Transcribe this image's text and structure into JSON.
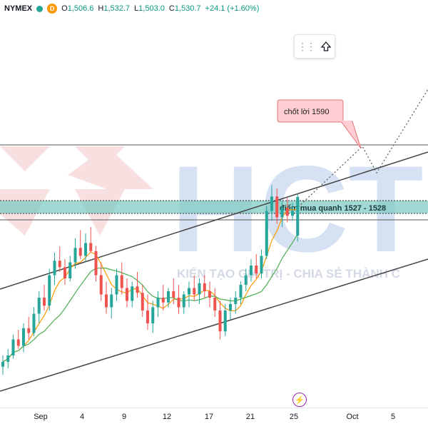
{
  "header": {
    "symbol": "NYMEX",
    "timeframe_badge": "D",
    "open_label": "O",
    "open": "1,506.6",
    "high_label": "H",
    "high": "1,532.7",
    "low_label": "L",
    "low": "1,503.0",
    "close_label": "C",
    "close": "1,530.7",
    "change": "+24.1 (+1.60%)"
  },
  "watermark": {
    "brand": "HCT",
    "slogan": "KIẾN TẠO GIÁ TRỊ - CHIA SẺ THÀNH C"
  },
  "annotations": {
    "take_profit": "chốt lời 1590",
    "buy_zone": "điểm mua quanh 1527 - 1528"
  },
  "xaxis": {
    "ticks": [
      "Sep",
      "4",
      "9",
      "12",
      "17",
      "21",
      "25",
      "Oct",
      "5"
    ]
  },
  "colors": {
    "up": "#26a69a",
    "down": "#ef5350",
    "zone": "#80cbc4",
    "callout": "#ffcdd2",
    "callout_border": "#e57373",
    "ma_fast": "#ff9800",
    "ma_slow": "#4caf50",
    "watermark_blue": "#c5d7ee",
    "watermark_red": "#f3c8c8"
  },
  "icons": {
    "toolbar_drag": "drag-handle-icon",
    "toolbar_arrow": "arrow-up-icon",
    "events": "lightning-icon"
  },
  "chart_data": {
    "type": "candlestick",
    "candles": [
      {
        "o": 1425,
        "h": 1432,
        "l": 1420,
        "c": 1428
      },
      {
        "o": 1428,
        "h": 1436,
        "l": 1424,
        "c": 1432
      },
      {
        "o": 1432,
        "h": 1445,
        "l": 1430,
        "c": 1442
      },
      {
        "o": 1442,
        "h": 1448,
        "l": 1436,
        "c": 1438
      },
      {
        "o": 1438,
        "h": 1452,
        "l": 1434,
        "c": 1449
      },
      {
        "o": 1449,
        "h": 1456,
        "l": 1442,
        "c": 1446
      },
      {
        "o": 1446,
        "h": 1462,
        "l": 1444,
        "c": 1458
      },
      {
        "o": 1458,
        "h": 1472,
        "l": 1452,
        "c": 1468
      },
      {
        "o": 1468,
        "h": 1476,
        "l": 1460,
        "c": 1463
      },
      {
        "o": 1463,
        "h": 1486,
        "l": 1460,
        "c": 1482
      },
      {
        "o": 1482,
        "h": 1496,
        "l": 1476,
        "c": 1491
      },
      {
        "o": 1491,
        "h": 1500,
        "l": 1484,
        "c": 1487
      },
      {
        "o": 1487,
        "h": 1492,
        "l": 1476,
        "c": 1480
      },
      {
        "o": 1480,
        "h": 1494,
        "l": 1478,
        "c": 1490
      },
      {
        "o": 1490,
        "h": 1505,
        "l": 1486,
        "c": 1499
      },
      {
        "o": 1499,
        "h": 1510,
        "l": 1492,
        "c": 1494
      },
      {
        "o": 1494,
        "h": 1508,
        "l": 1490,
        "c": 1502
      },
      {
        "o": 1502,
        "h": 1512,
        "l": 1496,
        "c": 1497
      },
      {
        "o": 1497,
        "h": 1500,
        "l": 1478,
        "c": 1482
      },
      {
        "o": 1482,
        "h": 1490,
        "l": 1466,
        "c": 1470
      },
      {
        "o": 1470,
        "h": 1478,
        "l": 1458,
        "c": 1462
      },
      {
        "o": 1462,
        "h": 1474,
        "l": 1455,
        "c": 1470
      },
      {
        "o": 1470,
        "h": 1486,
        "l": 1466,
        "c": 1482
      },
      {
        "o": 1482,
        "h": 1490,
        "l": 1470,
        "c": 1474
      },
      {
        "o": 1474,
        "h": 1480,
        "l": 1462,
        "c": 1466
      },
      {
        "o": 1466,
        "h": 1478,
        "l": 1462,
        "c": 1475
      },
      {
        "o": 1475,
        "h": 1484,
        "l": 1468,
        "c": 1471
      },
      {
        "o": 1471,
        "h": 1476,
        "l": 1456,
        "c": 1460
      },
      {
        "o": 1460,
        "h": 1470,
        "l": 1448,
        "c": 1452
      },
      {
        "o": 1452,
        "h": 1466,
        "l": 1446,
        "c": 1462
      },
      {
        "o": 1462,
        "h": 1472,
        "l": 1456,
        "c": 1468
      },
      {
        "o": 1468,
        "h": 1476,
        "l": 1460,
        "c": 1465
      },
      {
        "o": 1465,
        "h": 1474,
        "l": 1462,
        "c": 1472
      },
      {
        "o": 1472,
        "h": 1480,
        "l": 1464,
        "c": 1468
      },
      {
        "o": 1468,
        "h": 1476,
        "l": 1458,
        "c": 1462
      },
      {
        "o": 1462,
        "h": 1472,
        "l": 1458,
        "c": 1470
      },
      {
        "o": 1470,
        "h": 1478,
        "l": 1462,
        "c": 1474
      },
      {
        "o": 1474,
        "h": 1482,
        "l": 1466,
        "c": 1470
      },
      {
        "o": 1470,
        "h": 1480,
        "l": 1464,
        "c": 1477
      },
      {
        "o": 1477,
        "h": 1482,
        "l": 1468,
        "c": 1472
      },
      {
        "o": 1472,
        "h": 1478,
        "l": 1462,
        "c": 1468
      },
      {
        "o": 1468,
        "h": 1474,
        "l": 1456,
        "c": 1460
      },
      {
        "o": 1460,
        "h": 1466,
        "l": 1442,
        "c": 1447
      },
      {
        "o": 1447,
        "h": 1464,
        "l": 1444,
        "c": 1460
      },
      {
        "o": 1460,
        "h": 1468,
        "l": 1454,
        "c": 1464
      },
      {
        "o": 1464,
        "h": 1472,
        "l": 1458,
        "c": 1468
      },
      {
        "o": 1468,
        "h": 1478,
        "l": 1464,
        "c": 1476
      },
      {
        "o": 1476,
        "h": 1486,
        "l": 1472,
        "c": 1482
      },
      {
        "o": 1482,
        "h": 1492,
        "l": 1478,
        "c": 1488
      },
      {
        "o": 1488,
        "h": 1495,
        "l": 1480,
        "c": 1483
      },
      {
        "o": 1483,
        "h": 1498,
        "l": 1480,
        "c": 1494
      },
      {
        "o": 1494,
        "h": 1525,
        "l": 1492,
        "c": 1522
      },
      {
        "o": 1522,
        "h": 1538,
        "l": 1516,
        "c": 1531
      },
      {
        "o": 1531,
        "h": 1536,
        "l": 1514,
        "c": 1518
      },
      {
        "o": 1518,
        "h": 1528,
        "l": 1512,
        "c": 1524
      },
      {
        "o": 1524,
        "h": 1530,
        "l": 1515,
        "c": 1519
      },
      {
        "o": 1519,
        "h": 1527,
        "l": 1516,
        "c": 1522
      },
      {
        "o": 1506.6,
        "h": 1532.7,
        "l": 1503.0,
        "c": 1530.7
      }
    ],
    "ylim": [
      1400,
      1640
    ],
    "buy_zone": [
      1527,
      1528
    ],
    "target": 1590
  }
}
